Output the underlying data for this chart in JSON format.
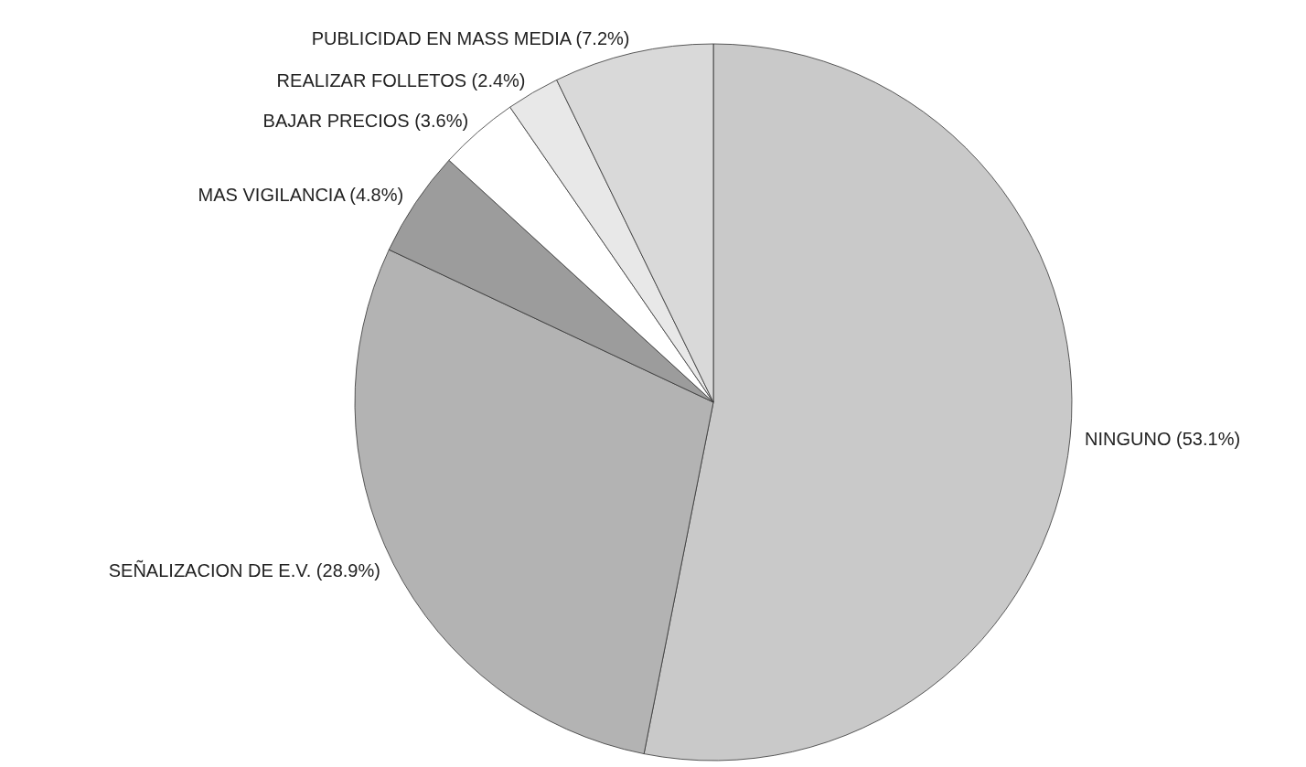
{
  "chart_data": {
    "type": "pie",
    "categories": [
      "NINGUNO",
      "SEÑALIZACION DE E.V.",
      "MAS VIGILANCIA",
      "BAJAR PRECIOS",
      "REALIZAR FOLLETOS",
      "PUBLICIDAD EN MASS MEDIA"
    ],
    "values": [
      53.1,
      28.9,
      4.8,
      3.6,
      2.4,
      7.2
    ],
    "value_labels": [
      "(53.1%)",
      "(28.9%)",
      "(4.8%)",
      "(3.6%)",
      "(2.4%)",
      "(7.2%)"
    ],
    "colors": [
      "#c9c9c9",
      "#b3b3b3",
      "#9c9c9c",
      "#ffffff",
      "#e8e8e8",
      "#d9d9d9"
    ]
  }
}
